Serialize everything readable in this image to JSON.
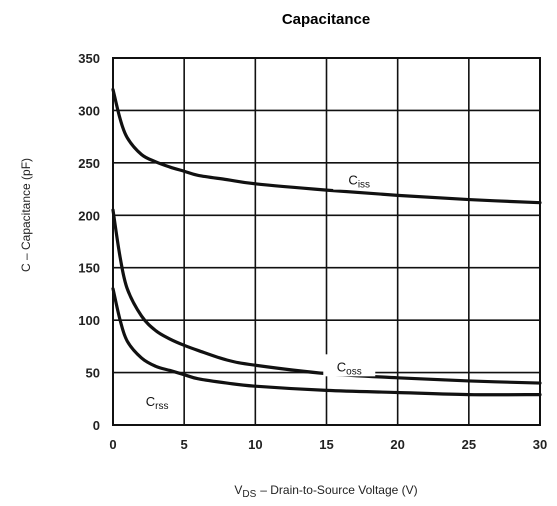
{
  "chart_data": {
    "type": "line",
    "title": "Capacitance",
    "xlabel": {
      "prefix": "V",
      "sub": "DS",
      "text": "–  Drain-to-Source Voltage (V)"
    },
    "ylabel": "C  –  Capacitance (pF)",
    "xlim": [
      0,
      30
    ],
    "ylim": [
      0,
      350
    ],
    "xticks": [
      0,
      5,
      10,
      15,
      20,
      25,
      30
    ],
    "yticks": [
      0,
      50,
      100,
      150,
      200,
      250,
      300,
      350
    ],
    "grid": true,
    "series": [
      {
        "name": "Ciss",
        "label_main": "C",
        "label_sub": "iss",
        "x": [
          0,
          0.5,
          1,
          2,
          3,
          4,
          5,
          6,
          8,
          10,
          15,
          20,
          25,
          30
        ],
        "y": [
          320,
          292,
          274,
          258,
          251,
          246,
          242,
          238,
          234,
          230,
          224,
          219,
          215,
          212
        ]
      },
      {
        "name": "Coss",
        "label_main": "C",
        "label_sub": "oss",
        "x": [
          0,
          0.5,
          1,
          2,
          3,
          4,
          5,
          6,
          8,
          10,
          15,
          20,
          25,
          30
        ],
        "y": [
          205,
          160,
          130,
          104,
          90,
          82,
          76,
          71,
          62,
          57,
          49,
          45,
          42,
          40
        ]
      },
      {
        "name": "Crss",
        "label_main": "C",
        "label_sub": "rss",
        "x": [
          0,
          0.5,
          1,
          2,
          3,
          4,
          5,
          6,
          8,
          10,
          15,
          20,
          25,
          30
        ],
        "y": [
          130,
          100,
          80,
          64,
          56,
          52,
          48,
          44,
          40,
          37,
          33,
          31,
          29,
          29
        ]
      }
    ]
  }
}
